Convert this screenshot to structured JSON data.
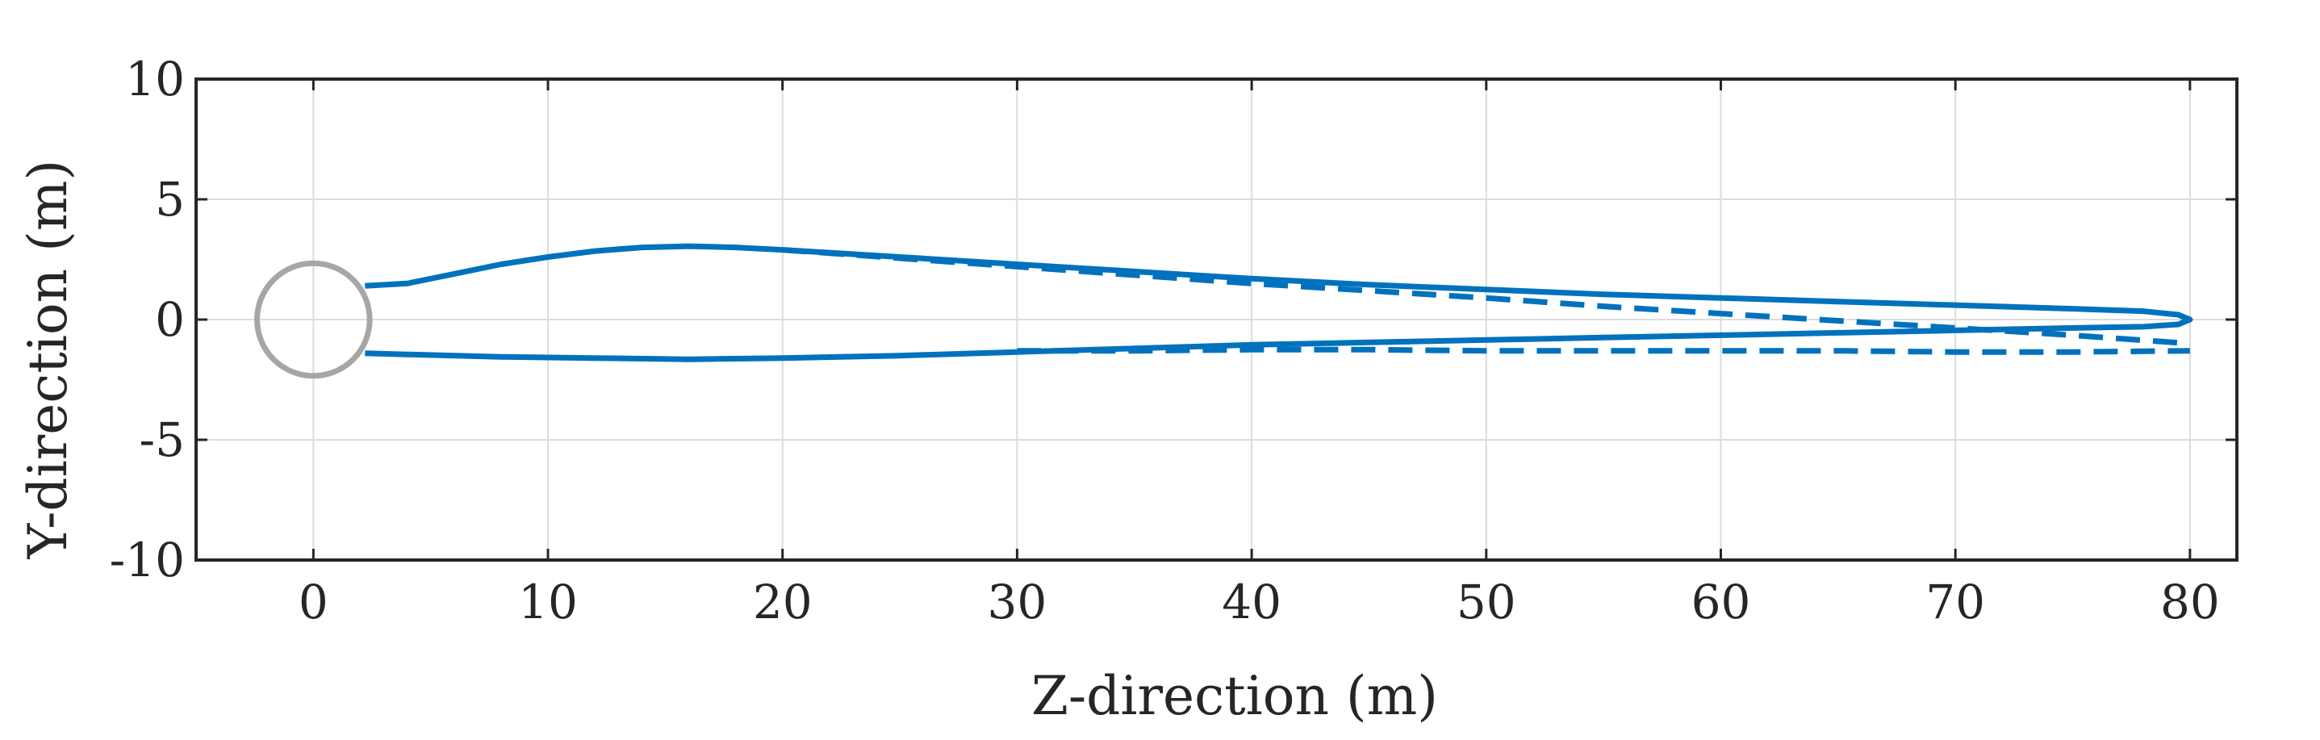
{
  "chart_data": {
    "type": "line",
    "title": "",
    "xlabel": "Z-direction (m)",
    "ylabel": "Y-direction (m)",
    "xlim": [
      -5,
      82
    ],
    "ylim": [
      -10,
      10
    ],
    "xticks": [
      0,
      10,
      20,
      30,
      40,
      50,
      60,
      70,
      80
    ],
    "yticks": [
      10,
      5,
      0,
      -5,
      -10
    ],
    "xtick_labels": [
      "0",
      "10",
      "20",
      "30",
      "40",
      "50",
      "60",
      "70",
      "80"
    ],
    "ytick_labels": [
      "10",
      "5",
      "0",
      "-5",
      "-10"
    ],
    "grid": true,
    "legend": "none",
    "colors": {
      "series": "#0072BD",
      "circle": "#A6A6A6",
      "grid": "#DCDCDC",
      "axis": "#262626"
    },
    "circle": {
      "center": [
        0,
        0
      ],
      "radius": 2.4
    },
    "series": [
      {
        "style": "solid",
        "x": [
          2.2,
          4,
          6,
          8,
          10,
          12,
          14,
          16,
          18,
          20,
          25,
          30,
          35,
          40,
          45,
          50,
          55,
          60,
          65,
          70,
          75,
          78,
          79.5,
          80,
          79.5,
          78,
          75,
          70,
          65,
          60,
          55,
          50,
          45,
          40,
          35,
          30,
          25,
          20,
          16,
          12,
          8,
          4,
          2.2
        ],
        "y": [
          1.4,
          1.5,
          1.9,
          2.3,
          2.6,
          2.85,
          3.0,
          3.05,
          3.0,
          2.9,
          2.6,
          2.3,
          2.0,
          1.7,
          1.45,
          1.25,
          1.05,
          0.9,
          0.75,
          0.6,
          0.45,
          0.35,
          0.2,
          0.0,
          -0.2,
          -0.3,
          -0.35,
          -0.45,
          -0.55,
          -0.65,
          -0.75,
          -0.85,
          -0.95,
          -1.05,
          -1.2,
          -1.35,
          -1.5,
          -1.6,
          -1.65,
          -1.6,
          -1.55,
          -1.45,
          -1.4
        ]
      },
      {
        "style": "dashed",
        "x": [
          20,
          25,
          30,
          35,
          40,
          45,
          50,
          55,
          60,
          65,
          70,
          75,
          80
        ],
        "y": [
          2.9,
          2.55,
          2.2,
          1.85,
          1.5,
          1.2,
          0.9,
          0.55,
          0.25,
          -0.05,
          -0.35,
          -0.65,
          -1.0
        ]
      },
      {
        "style": "dashed",
        "x": [
          30,
          35,
          40,
          45,
          50,
          55,
          60,
          65,
          70,
          75,
          80
        ],
        "y": [
          -1.3,
          -1.3,
          -1.25,
          -1.25,
          -1.3,
          -1.3,
          -1.3,
          -1.3,
          -1.35,
          -1.35,
          -1.3
        ]
      }
    ]
  }
}
